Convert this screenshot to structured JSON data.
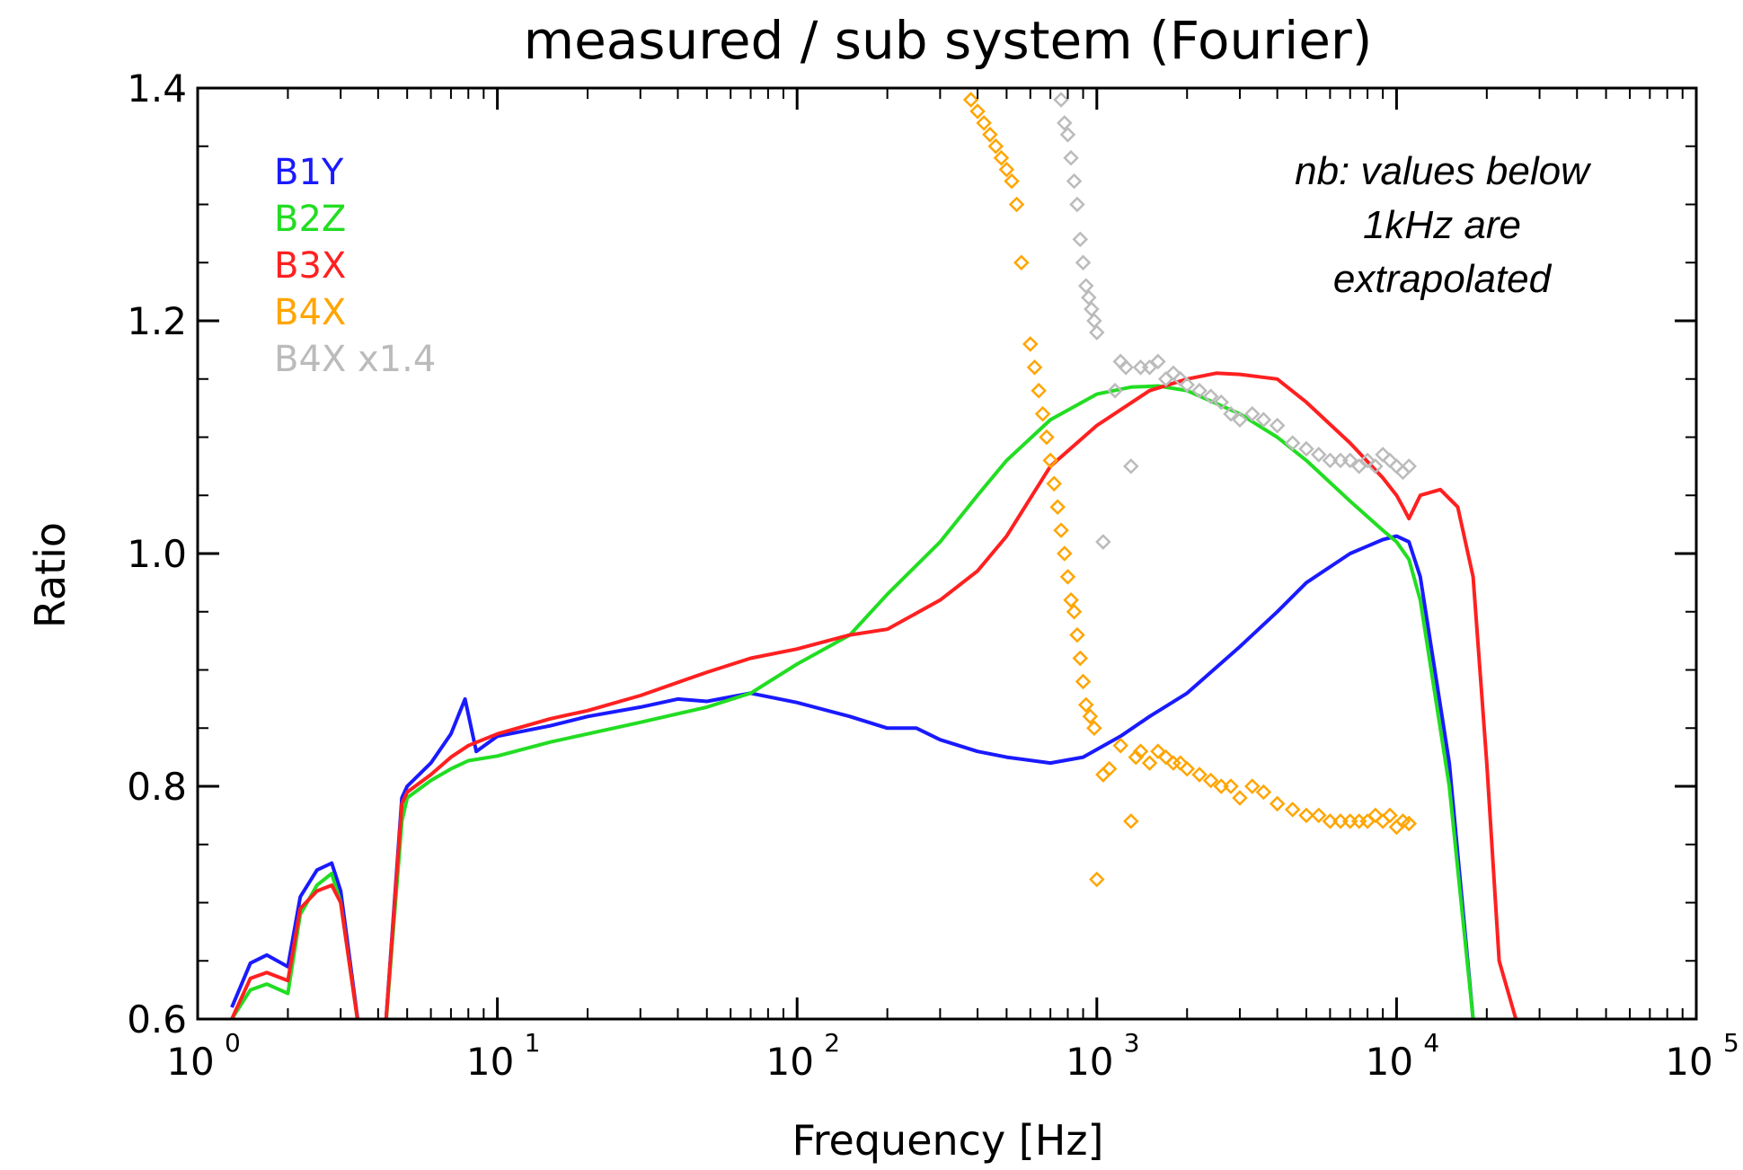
{
  "chart_data": {
    "type": "line",
    "title": "measured / sub system (Fourier)",
    "xlabel": "Frequency [Hz]",
    "ylabel": "Ratio",
    "xscale": "log",
    "xlim": [
      1,
      100000
    ],
    "ylim": [
      0.6,
      1.4
    ],
    "grid": false,
    "legend_placement": "top-left",
    "x_ticks": [
      {
        "base": "10",
        "exp": "0",
        "value": 1
      },
      {
        "base": "10",
        "exp": "1",
        "value": 10
      },
      {
        "base": "10",
        "exp": "2",
        "value": 100
      },
      {
        "base": "10",
        "exp": "3",
        "value": 1000
      },
      {
        "base": "10",
        "exp": "4",
        "value": 10000
      },
      {
        "base": "10",
        "exp": "5",
        "value": 100000
      }
    ],
    "y_ticks": [
      {
        "label": "0.6",
        "value": 0.6
      },
      {
        "label": "0.8",
        "value": 0.8
      },
      {
        "label": "1.0",
        "value": 1.0
      },
      {
        "label": "1.2",
        "value": 1.2
      },
      {
        "label": "1.4",
        "value": 1.4
      }
    ],
    "annotation": [
      "nb: values below",
      "1kHz are",
      "extrapolated"
    ],
    "series": [
      {
        "name": "B1Y",
        "color": "#1a1aff",
        "style": "line",
        "x": [
          1.3,
          1.5,
          1.7,
          2.0,
          2.2,
          2.5,
          2.8,
          3.0,
          3.5,
          4.2,
          4.8,
          5.0,
          6.0,
          7.0,
          7.8,
          8.5,
          10,
          15,
          20,
          30,
          40,
          50,
          70,
          100,
          150,
          200,
          250,
          300,
          400,
          500,
          700,
          900,
          1200,
          1500,
          2000,
          3000,
          4000,
          5000,
          7000,
          9000,
          10000,
          11000,
          12000,
          15000,
          18000
        ],
        "y": [
          0.61,
          0.648,
          0.655,
          0.645,
          0.705,
          0.728,
          0.734,
          0.71,
          0.58,
          0.58,
          0.79,
          0.8,
          0.82,
          0.845,
          0.875,
          0.83,
          0.843,
          0.852,
          0.86,
          0.868,
          0.875,
          0.873,
          0.88,
          0.872,
          0.86,
          0.85,
          0.85,
          0.84,
          0.83,
          0.825,
          0.82,
          0.825,
          0.843,
          0.86,
          0.88,
          0.92,
          0.95,
          0.975,
          1.0,
          1.012,
          1.015,
          1.01,
          0.98,
          0.82,
          0.6
        ]
      },
      {
        "name": "B2Z",
        "color": "#22dd22",
        "style": "line",
        "x": [
          1.3,
          1.5,
          1.7,
          2.0,
          2.2,
          2.5,
          2.8,
          3.0,
          3.5,
          4.2,
          4.8,
          5.0,
          6.0,
          7.0,
          8.0,
          10,
          15,
          20,
          30,
          50,
          70,
          100,
          150,
          200,
          300,
          400,
          500,
          700,
          1000,
          1300,
          1600,
          2000,
          3000,
          4000,
          5000,
          7000,
          9000,
          10000,
          11000,
          12000,
          15000,
          18000
        ],
        "y": [
          0.6,
          0.625,
          0.63,
          0.622,
          0.69,
          0.715,
          0.725,
          0.7,
          0.58,
          0.58,
          0.77,
          0.79,
          0.805,
          0.815,
          0.822,
          0.826,
          0.838,
          0.845,
          0.855,
          0.868,
          0.88,
          0.905,
          0.93,
          0.965,
          1.01,
          1.05,
          1.08,
          1.115,
          1.137,
          1.143,
          1.144,
          1.14,
          1.12,
          1.1,
          1.08,
          1.045,
          1.02,
          1.01,
          0.995,
          0.96,
          0.8,
          0.6
        ]
      },
      {
        "name": "B3X",
        "color": "#ff2020",
        "style": "line",
        "x": [
          1.3,
          1.5,
          1.7,
          2.0,
          2.2,
          2.5,
          2.8,
          3.0,
          3.5,
          4.2,
          4.8,
          5.0,
          6.0,
          7.0,
          8.0,
          10,
          15,
          20,
          30,
          50,
          70,
          100,
          150,
          200,
          300,
          400,
          500,
          700,
          1000,
          1500,
          2000,
          2500,
          3000,
          4000,
          5000,
          7000,
          9000,
          10000,
          10500,
          11000,
          12000,
          14000,
          16000,
          18000,
          20000,
          22000,
          25000
        ],
        "y": [
          0.6,
          0.635,
          0.64,
          0.633,
          0.695,
          0.71,
          0.715,
          0.7,
          0.58,
          0.58,
          0.785,
          0.795,
          0.81,
          0.825,
          0.835,
          0.845,
          0.858,
          0.865,
          0.878,
          0.898,
          0.91,
          0.918,
          0.93,
          0.935,
          0.96,
          0.985,
          1.015,
          1.075,
          1.11,
          1.14,
          1.15,
          1.155,
          1.154,
          1.15,
          1.13,
          1.095,
          1.065,
          1.05,
          1.04,
          1.03,
          1.05,
          1.055,
          1.04,
          0.98,
          0.82,
          0.65,
          0.6
        ]
      },
      {
        "name": "B4X",
        "color": "#ffa500",
        "style": "diamond",
        "x": [
          380,
          400,
          420,
          440,
          460,
          480,
          500,
          520,
          540,
          560,
          600,
          620,
          640,
          660,
          680,
          700,
          720,
          740,
          760,
          780,
          800,
          820,
          840,
          860,
          880,
          900,
          920,
          950,
          980,
          1000,
          1050,
          1100,
          1200,
          1300,
          1350,
          1400,
          1500,
          1600,
          1700,
          1800,
          1900,
          2000,
          2200,
          2400,
          2600,
          2800,
          3000,
          3300,
          3600,
          4000,
          4500,
          5000,
          5500,
          6000,
          6500,
          7000,
          7500,
          8000,
          8500,
          9000,
          9500,
          10000,
          10500,
          11000
        ],
        "y": [
          1.39,
          1.38,
          1.37,
          1.36,
          1.35,
          1.34,
          1.33,
          1.32,
          1.3,
          1.25,
          1.18,
          1.16,
          1.14,
          1.12,
          1.1,
          1.08,
          1.06,
          1.04,
          1.02,
          1.0,
          0.98,
          0.96,
          0.95,
          0.93,
          0.91,
          0.89,
          0.87,
          0.86,
          0.85,
          0.72,
          0.81,
          0.815,
          0.835,
          0.77,
          0.825,
          0.83,
          0.82,
          0.83,
          0.825,
          0.82,
          0.82,
          0.815,
          0.81,
          0.805,
          0.8,
          0.8,
          0.79,
          0.8,
          0.795,
          0.785,
          0.78,
          0.775,
          0.775,
          0.77,
          0.77,
          0.77,
          0.77,
          0.77,
          0.775,
          0.77,
          0.775,
          0.765,
          0.77,
          0.768
        ]
      },
      {
        "name": "B4X  x1.4",
        "color": "#bbbbbb",
        "style": "diamond",
        "x": [
          760,
          780,
          800,
          820,
          840,
          860,
          880,
          900,
          920,
          940,
          960,
          980,
          1000,
          1050,
          1150,
          1200,
          1250,
          1300,
          1400,
          1500,
          1600,
          1700,
          1800,
          1900,
          2000,
          2200,
          2400,
          2600,
          2800,
          3000,
          3300,
          3600,
          4000,
          4500,
          5000,
          5500,
          6000,
          6500,
          7000,
          7500,
          8000,
          8500,
          9000,
          9500,
          10000,
          10500,
          11000
        ],
        "y": [
          1.39,
          1.37,
          1.36,
          1.34,
          1.32,
          1.3,
          1.27,
          1.25,
          1.23,
          1.22,
          1.21,
          1.2,
          1.19,
          1.01,
          1.14,
          1.165,
          1.16,
          1.075,
          1.16,
          1.16,
          1.165,
          1.15,
          1.155,
          1.15,
          1.145,
          1.14,
          1.135,
          1.13,
          1.12,
          1.115,
          1.12,
          1.115,
          1.11,
          1.095,
          1.09,
          1.085,
          1.08,
          1.08,
          1.08,
          1.075,
          1.08,
          1.075,
          1.085,
          1.08,
          1.075,
          1.07,
          1.075
        ]
      }
    ]
  }
}
